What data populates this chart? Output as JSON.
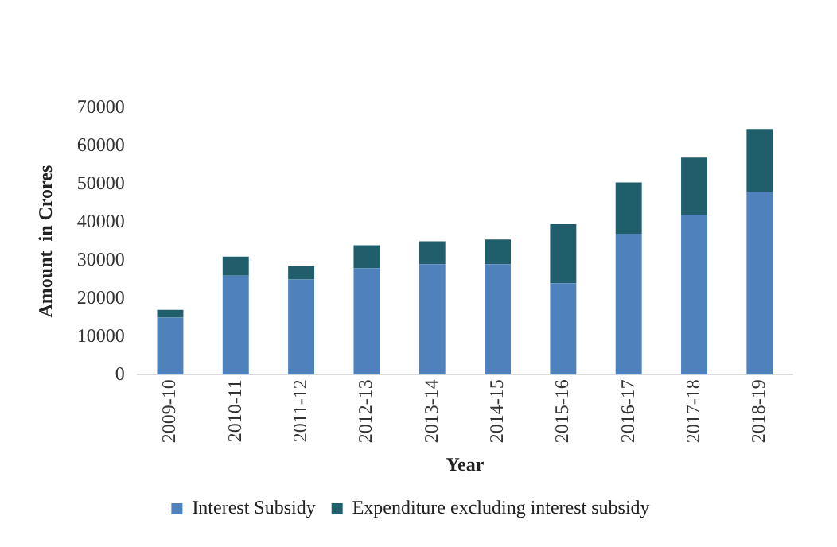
{
  "chart_data": {
    "type": "bar",
    "stacked": true,
    "xlabel": "Year",
    "ylabel": "Amount  in Crores",
    "categories": [
      "2009-10",
      "2010-11",
      "2011-12",
      "2012-13",
      "2013-14",
      "2014-15",
      "2015-16",
      "2016-17",
      "2017-18",
      "2018-19"
    ],
    "series": [
      {
        "name": "Interest Subsidy",
        "color": "#4f81bd",
        "values": [
          15000,
          26000,
          25000,
          28000,
          29000,
          29000,
          24000,
          37000,
          42000,
          48000
        ]
      },
      {
        "name": "Expenditure excluding interest subsidy",
        "color": "#215e6c",
        "values": [
          2000,
          5000,
          3500,
          6000,
          6000,
          6500,
          15500,
          13500,
          15000,
          16500
        ]
      }
    ],
    "ylim": [
      0,
      70000
    ],
    "yticks": [
      0,
      10000,
      20000,
      30000,
      40000,
      50000,
      60000,
      70000
    ],
    "grid": false,
    "legend": "bottom"
  }
}
